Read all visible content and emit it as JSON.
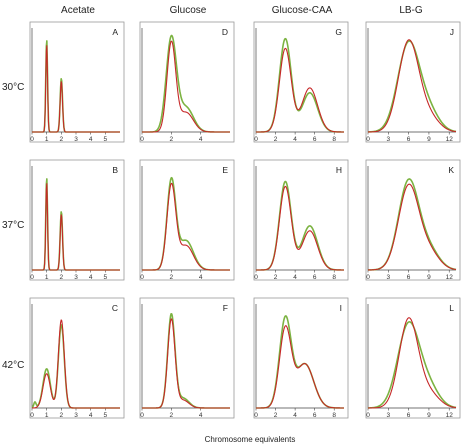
{
  "figure": {
    "column_titles": [
      "Acetate",
      "Glucose",
      "Glucose-CAA",
      "LB-G"
    ],
    "row_labels": [
      "30°C",
      "37°C",
      "42°C"
    ],
    "xlabel": "Chromosome equivalents"
  },
  "colors": {
    "model": "#c62828",
    "measured": "#7cb342"
  },
  "chart_data": [
    {
      "panel": "A",
      "type": "line",
      "row": "30°C",
      "column": "Acetate",
      "xlim": [
        0,
        6
      ],
      "xticks": [
        0,
        1,
        2,
        3,
        4,
        5
      ],
      "series": [
        {
          "color": "#7cb342",
          "peaks": [
            [
              1,
              0.95,
              0.06
            ],
            [
              2,
              0.55,
              0.08
            ]
          ]
        },
        {
          "color": "#c62828",
          "peaks": [
            [
              1,
              0.9,
              0.06
            ],
            [
              2,
              0.52,
              0.08
            ]
          ]
        }
      ]
    },
    {
      "panel": "B",
      "type": "line",
      "row": "37°C",
      "column": "Acetate",
      "xlim": [
        0,
        6
      ],
      "xticks": [
        0,
        1,
        2,
        3,
        4,
        5
      ],
      "series": [
        {
          "color": "#7cb342",
          "peaks": [
            [
              1,
              0.95,
              0.06
            ],
            [
              2,
              0.6,
              0.08
            ]
          ]
        },
        {
          "color": "#c62828",
          "peaks": [
            [
              1,
              0.9,
              0.06
            ],
            [
              2,
              0.57,
              0.08
            ]
          ]
        }
      ]
    },
    {
      "panel": "C",
      "type": "line",
      "row": "42°C",
      "column": "Acetate",
      "xlim": [
        0,
        6
      ],
      "xticks": [
        0,
        1,
        2,
        3,
        4,
        5
      ],
      "series": [
        {
          "color": "#7cb342",
          "peaks": [
            [
              1,
              0.4,
              0.25
            ],
            [
              2,
              0.85,
              0.2
            ],
            [
              0.2,
              0.06,
              0.08
            ]
          ]
        },
        {
          "color": "#c62828",
          "peaks": [
            [
              1,
              0.35,
              0.25
            ],
            [
              2,
              0.9,
              0.2
            ]
          ]
        }
      ]
    },
    {
      "panel": "D",
      "type": "line",
      "row": "30°C",
      "column": "Glucose",
      "xlim": [
        0,
        6
      ],
      "xticks": [
        0,
        2,
        4
      ],
      "series": [
        {
          "color": "#7cb342",
          "peaks": [
            [
              2,
              0.95,
              0.35
            ],
            [
              3,
              0.25,
              0.5
            ]
          ]
        },
        {
          "color": "#c62828",
          "peaks": [
            [
              2,
              0.9,
              0.3
            ],
            [
              3,
              0.2,
              0.5
            ]
          ]
        }
      ]
    },
    {
      "panel": "E",
      "type": "line",
      "row": "37°C",
      "column": "Glucose",
      "xlim": [
        0,
        6
      ],
      "xticks": [
        0,
        2,
        4
      ],
      "series": [
        {
          "color": "#7cb342",
          "peaks": [
            [
              2,
              0.9,
              0.3
            ],
            [
              3,
              0.3,
              0.5
            ]
          ]
        },
        {
          "color": "#c62828",
          "peaks": [
            [
              2,
              0.85,
              0.3
            ],
            [
              3,
              0.25,
              0.5
            ]
          ]
        }
      ]
    },
    {
      "panel": "F",
      "type": "line",
      "row": "42°C",
      "column": "Glucose",
      "xlim": [
        0,
        6
      ],
      "xticks": [
        0,
        2,
        4
      ],
      "series": [
        {
          "color": "#7cb342",
          "peaks": [
            [
              2,
              0.95,
              0.25
            ],
            [
              2.8,
              0.1,
              0.4
            ]
          ]
        },
        {
          "color": "#c62828",
          "peaks": [
            [
              2,
              0.9,
              0.25
            ],
            [
              2.8,
              0.08,
              0.4
            ]
          ]
        }
      ]
    },
    {
      "panel": "G",
      "type": "line",
      "row": "30°C",
      "column": "Glucose-CAA",
      "xlim": [
        0,
        9
      ],
      "xticks": [
        0,
        2,
        4,
        6,
        8
      ],
      "series": [
        {
          "color": "#7cb342",
          "peaks": [
            [
              3,
              0.95,
              0.6
            ],
            [
              5.5,
              0.4,
              0.8
            ]
          ]
        },
        {
          "color": "#c62828",
          "peaks": [
            [
              3,
              0.85,
              0.6
            ],
            [
              5.5,
              0.45,
              0.8
            ]
          ]
        }
      ]
    },
    {
      "panel": "H",
      "type": "line",
      "row": "37°C",
      "column": "Glucose-CAA",
      "xlim": [
        0,
        9
      ],
      "xticks": [
        0,
        2,
        4,
        6,
        8
      ],
      "series": [
        {
          "color": "#7cb342",
          "peaks": [
            [
              3,
              0.9,
              0.6
            ],
            [
              5.5,
              0.45,
              0.8
            ]
          ]
        },
        {
          "color": "#c62828",
          "peaks": [
            [
              3,
              0.85,
              0.6
            ],
            [
              5.5,
              0.4,
              0.8
            ]
          ]
        }
      ]
    },
    {
      "panel": "I",
      "type": "line",
      "row": "42°C",
      "column": "Glucose-CAA",
      "xlim": [
        0,
        9
      ],
      "xticks": [
        0,
        2,
        4,
        6,
        8
      ],
      "series": [
        {
          "color": "#7cb342",
          "peaks": [
            [
              3,
              0.9,
              0.6
            ],
            [
              5,
              0.45,
              0.9
            ]
          ]
        },
        {
          "color": "#c62828",
          "peaks": [
            [
              3,
              0.8,
              0.6
            ],
            [
              5,
              0.45,
              0.9
            ]
          ]
        }
      ]
    },
    {
      "panel": "J",
      "type": "line",
      "row": "30°C",
      "column": "LB-G",
      "xlim": [
        0,
        13
      ],
      "xticks": [
        0,
        3,
        6,
        9,
        12
      ],
      "series": [
        {
          "color": "#7cb342",
          "peaks": [
            [
              6,
              0.9,
              1.6
            ],
            [
              9,
              0.2,
              1.5
            ]
          ]
        },
        {
          "color": "#c62828",
          "peaks": [
            [
              6,
              0.92,
              1.5
            ],
            [
              9,
              0.15,
              1.5
            ]
          ]
        }
      ]
    },
    {
      "panel": "K",
      "type": "line",
      "row": "37°C",
      "column": "LB-G",
      "xlim": [
        0,
        13
      ],
      "xticks": [
        0,
        3,
        6,
        9,
        12
      ],
      "series": [
        {
          "color": "#7cb342",
          "peaks": [
            [
              6,
              0.9,
              1.5
            ],
            [
              9,
              0.2,
              1.5
            ]
          ]
        },
        {
          "color": "#c62828",
          "peaks": [
            [
              6,
              0.85,
              1.5
            ],
            [
              9,
              0.18,
              1.5
            ]
          ]
        }
      ]
    },
    {
      "panel": "L",
      "type": "line",
      "row": "42°C",
      "column": "LB-G",
      "xlim": [
        0,
        13
      ],
      "xticks": [
        0,
        3,
        6,
        9,
        12
      ],
      "series": [
        {
          "color": "#7cb342",
          "peaks": [
            [
              6,
              0.85,
              1.6
            ],
            [
              9,
              0.2,
              1.5
            ]
          ]
        },
        {
          "color": "#c62828",
          "peaks": [
            [
              6,
              0.9,
              1.4
            ],
            [
              9,
              0.15,
              1.5
            ]
          ]
        }
      ]
    }
  ]
}
